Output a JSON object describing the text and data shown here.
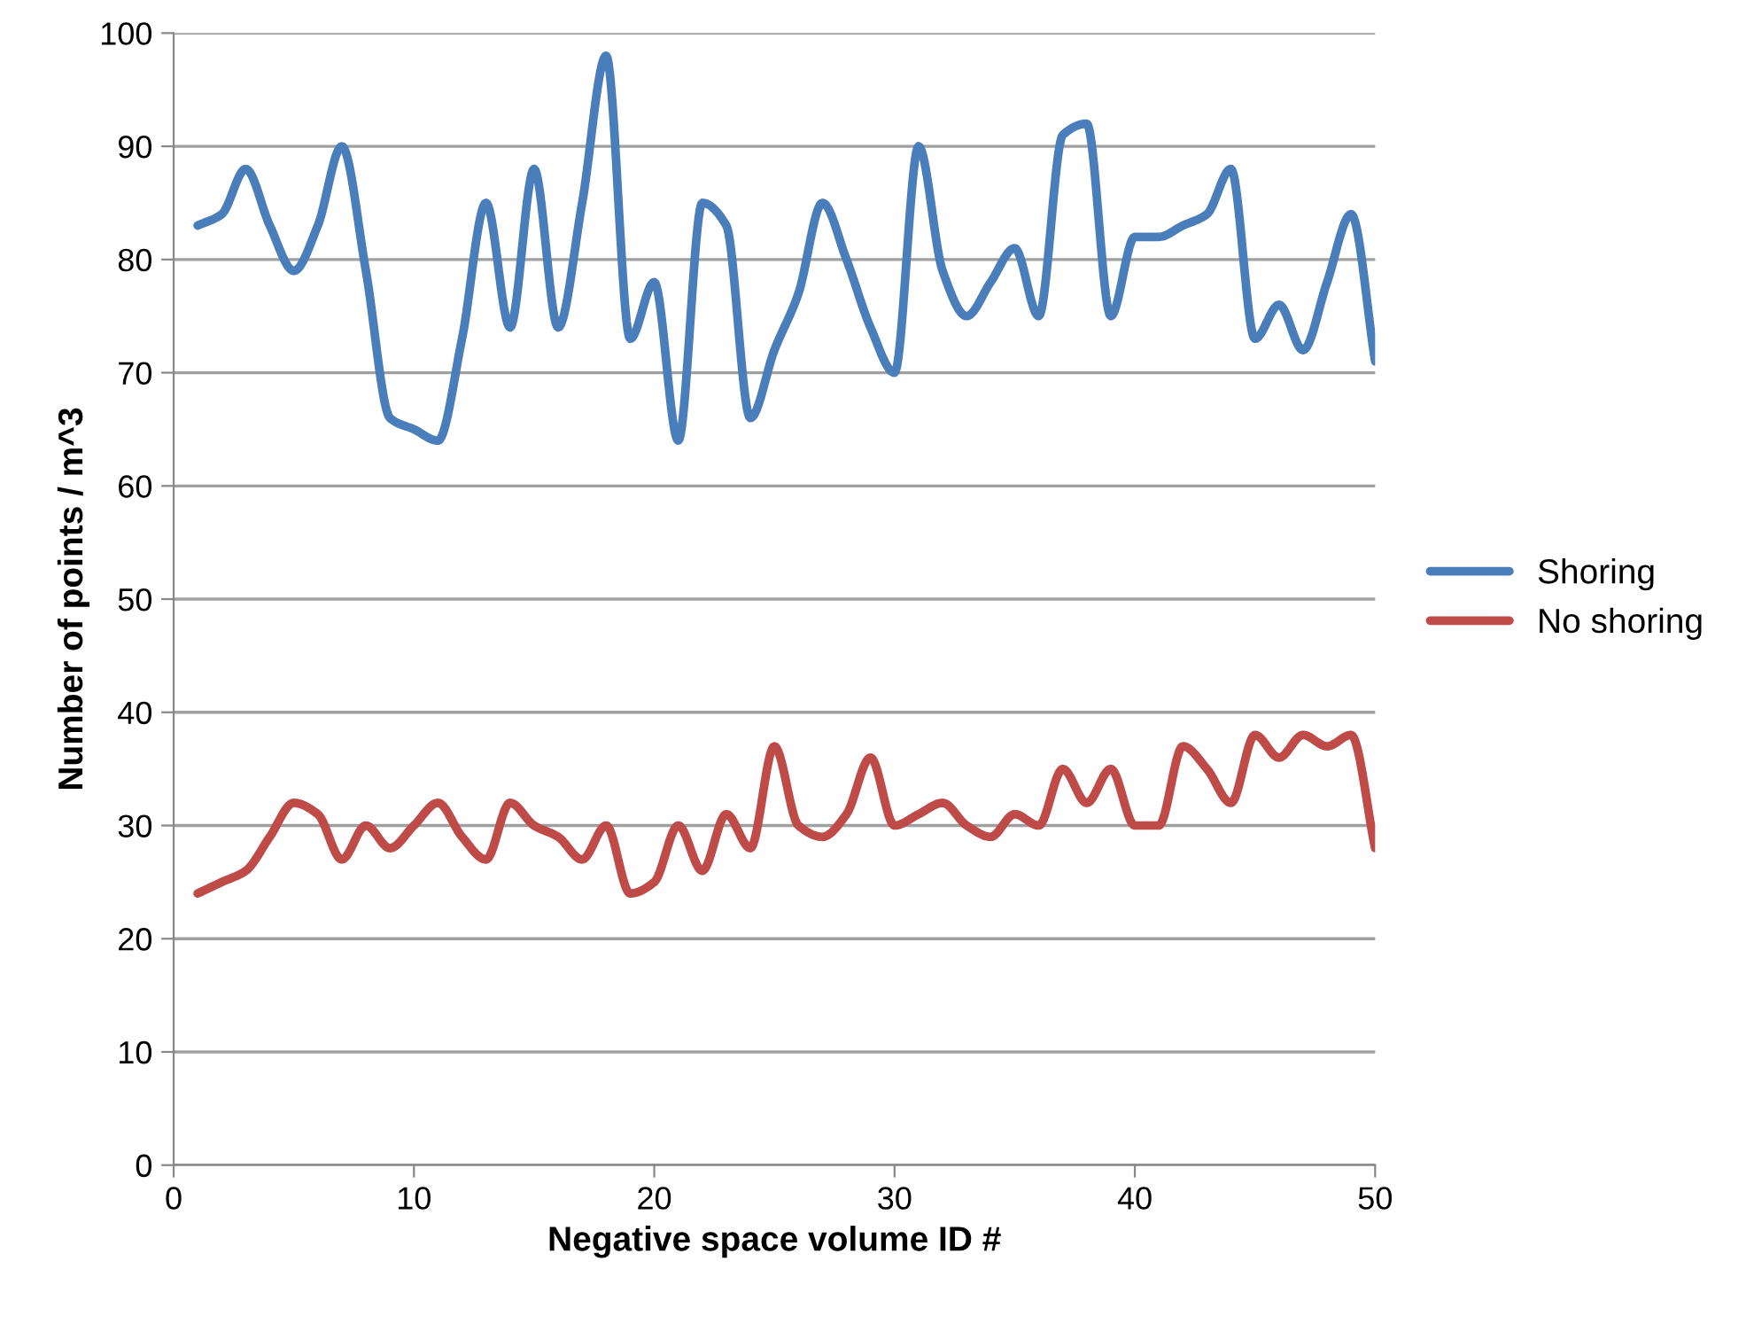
{
  "chart_data": {
    "type": "line",
    "xlabel": "Negative space volume ID #",
    "ylabel": "Number of points / m^3",
    "x": [
      1,
      2,
      3,
      4,
      5,
      6,
      7,
      8,
      9,
      10,
      11,
      12,
      13,
      14,
      15,
      16,
      17,
      18,
      19,
      20,
      21,
      22,
      23,
      24,
      25,
      26,
      27,
      28,
      29,
      30,
      31,
      32,
      33,
      34,
      35,
      36,
      37,
      38,
      39,
      40,
      41,
      42,
      43,
      44,
      45,
      46,
      47,
      48,
      49,
      50
    ],
    "series": [
      {
        "name": "Shoring",
        "color": "#4a7ebb",
        "values": [
          83,
          84,
          88,
          83,
          79,
          83,
          90,
          79,
          66,
          65,
          64,
          73,
          85,
          74,
          88,
          74,
          85,
          98,
          73,
          78,
          64,
          85,
          83,
          66,
          72,
          77,
          85,
          80,
          74,
          70,
          90,
          79,
          75,
          78,
          81,
          75,
          91,
          92,
          75,
          82,
          82,
          83,
          84,
          88,
          73,
          76,
          72,
          78,
          84,
          71
        ]
      },
      {
        "name": "No shoring",
        "color": "#be4b48",
        "values": [
          24,
          25,
          26,
          29,
          32,
          31,
          27,
          30,
          28,
          30,
          32,
          29,
          27,
          32,
          30,
          29,
          27,
          30,
          24,
          25,
          30,
          26,
          31,
          28,
          37,
          30,
          29,
          31,
          36,
          30,
          31,
          32,
          30,
          29,
          31,
          30,
          35,
          32,
          35,
          30,
          30,
          37,
          35,
          32,
          38,
          36,
          38,
          37,
          38,
          28
        ]
      }
    ],
    "xlim": [
      0,
      50
    ],
    "xticks": [
      0,
      10,
      20,
      30,
      40,
      50
    ],
    "ylim": [
      0,
      100
    ],
    "yticks": [
      0,
      10,
      20,
      30,
      40,
      50,
      60,
      70,
      80,
      90,
      100
    ],
    "grid": "y",
    "legend": "right",
    "marker": "none",
    "line_style": "solid"
  }
}
